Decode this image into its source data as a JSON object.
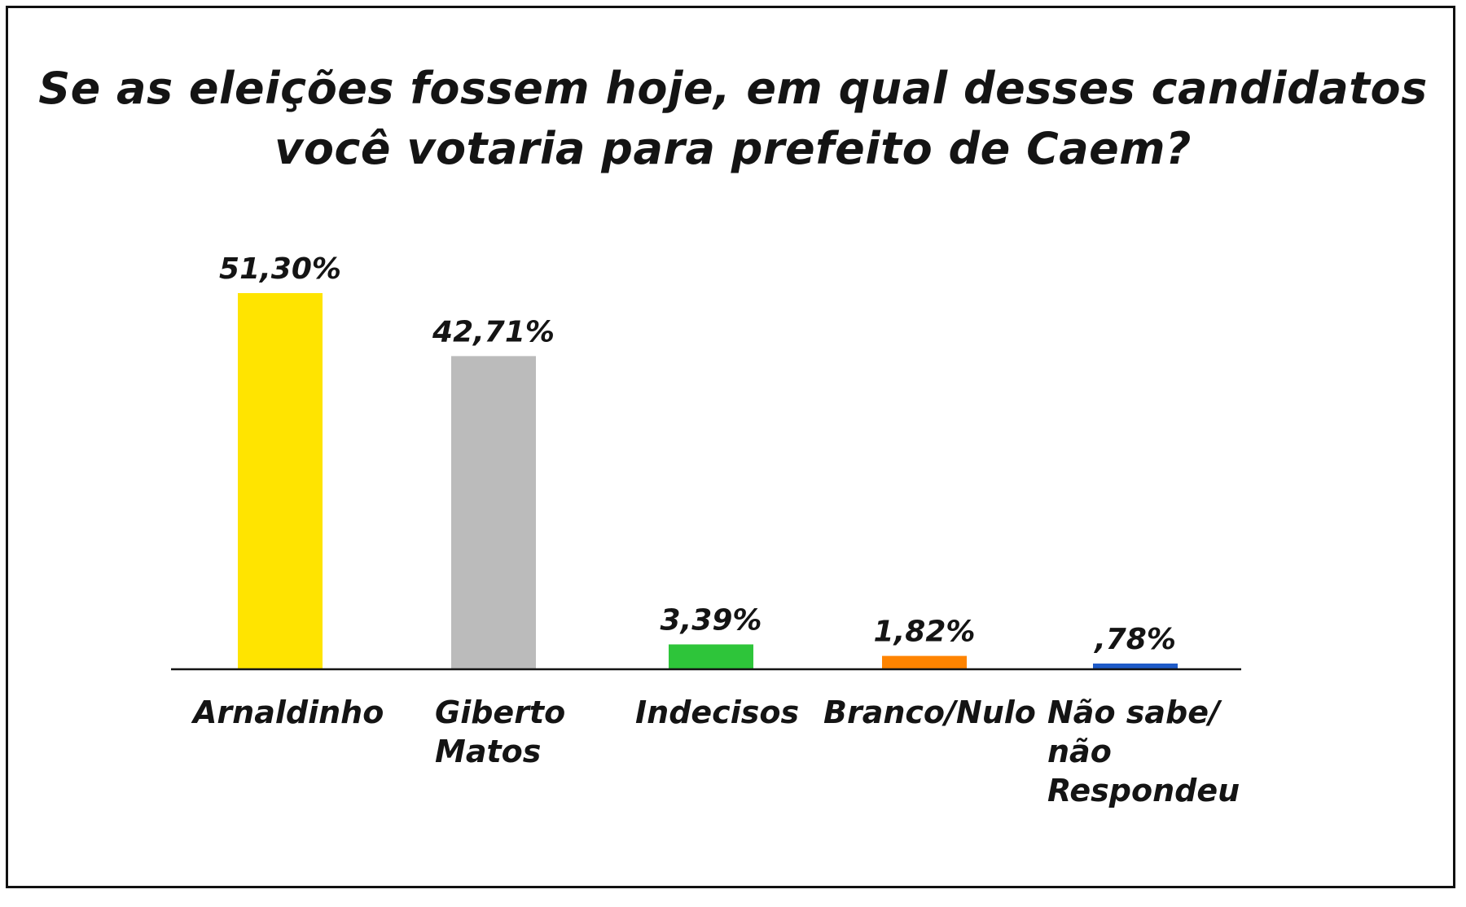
{
  "chart_data": {
    "type": "bar",
    "title_lines": [
      "Se as eleições fossem hoje, em qual desses candidatos",
      "você votaria para prefeito de Caem?"
    ],
    "categories": [
      [
        "Arnaldinho"
      ],
      [
        "Giberto",
        "Matos"
      ],
      [
        "Indecisos"
      ],
      [
        "Branco/Nulo"
      ],
      [
        "Não sabe/",
        "não",
        "Respondeu"
      ]
    ],
    "values": [
      51.3,
      42.71,
      3.39,
      1.82,
      0.78
    ],
    "value_labels": [
      "51,30%",
      "42,71%",
      "3,39%",
      "1,82%",
      ",78%"
    ],
    "colors": [
      "#FFE400",
      "#BBBBBB",
      "#2EC53A",
      "#FF8400",
      "#1F5BC8"
    ],
    "xlabel": "",
    "ylabel": "",
    "ylim": [
      0,
      51.3
    ],
    "grid": false,
    "legend": "none"
  }
}
